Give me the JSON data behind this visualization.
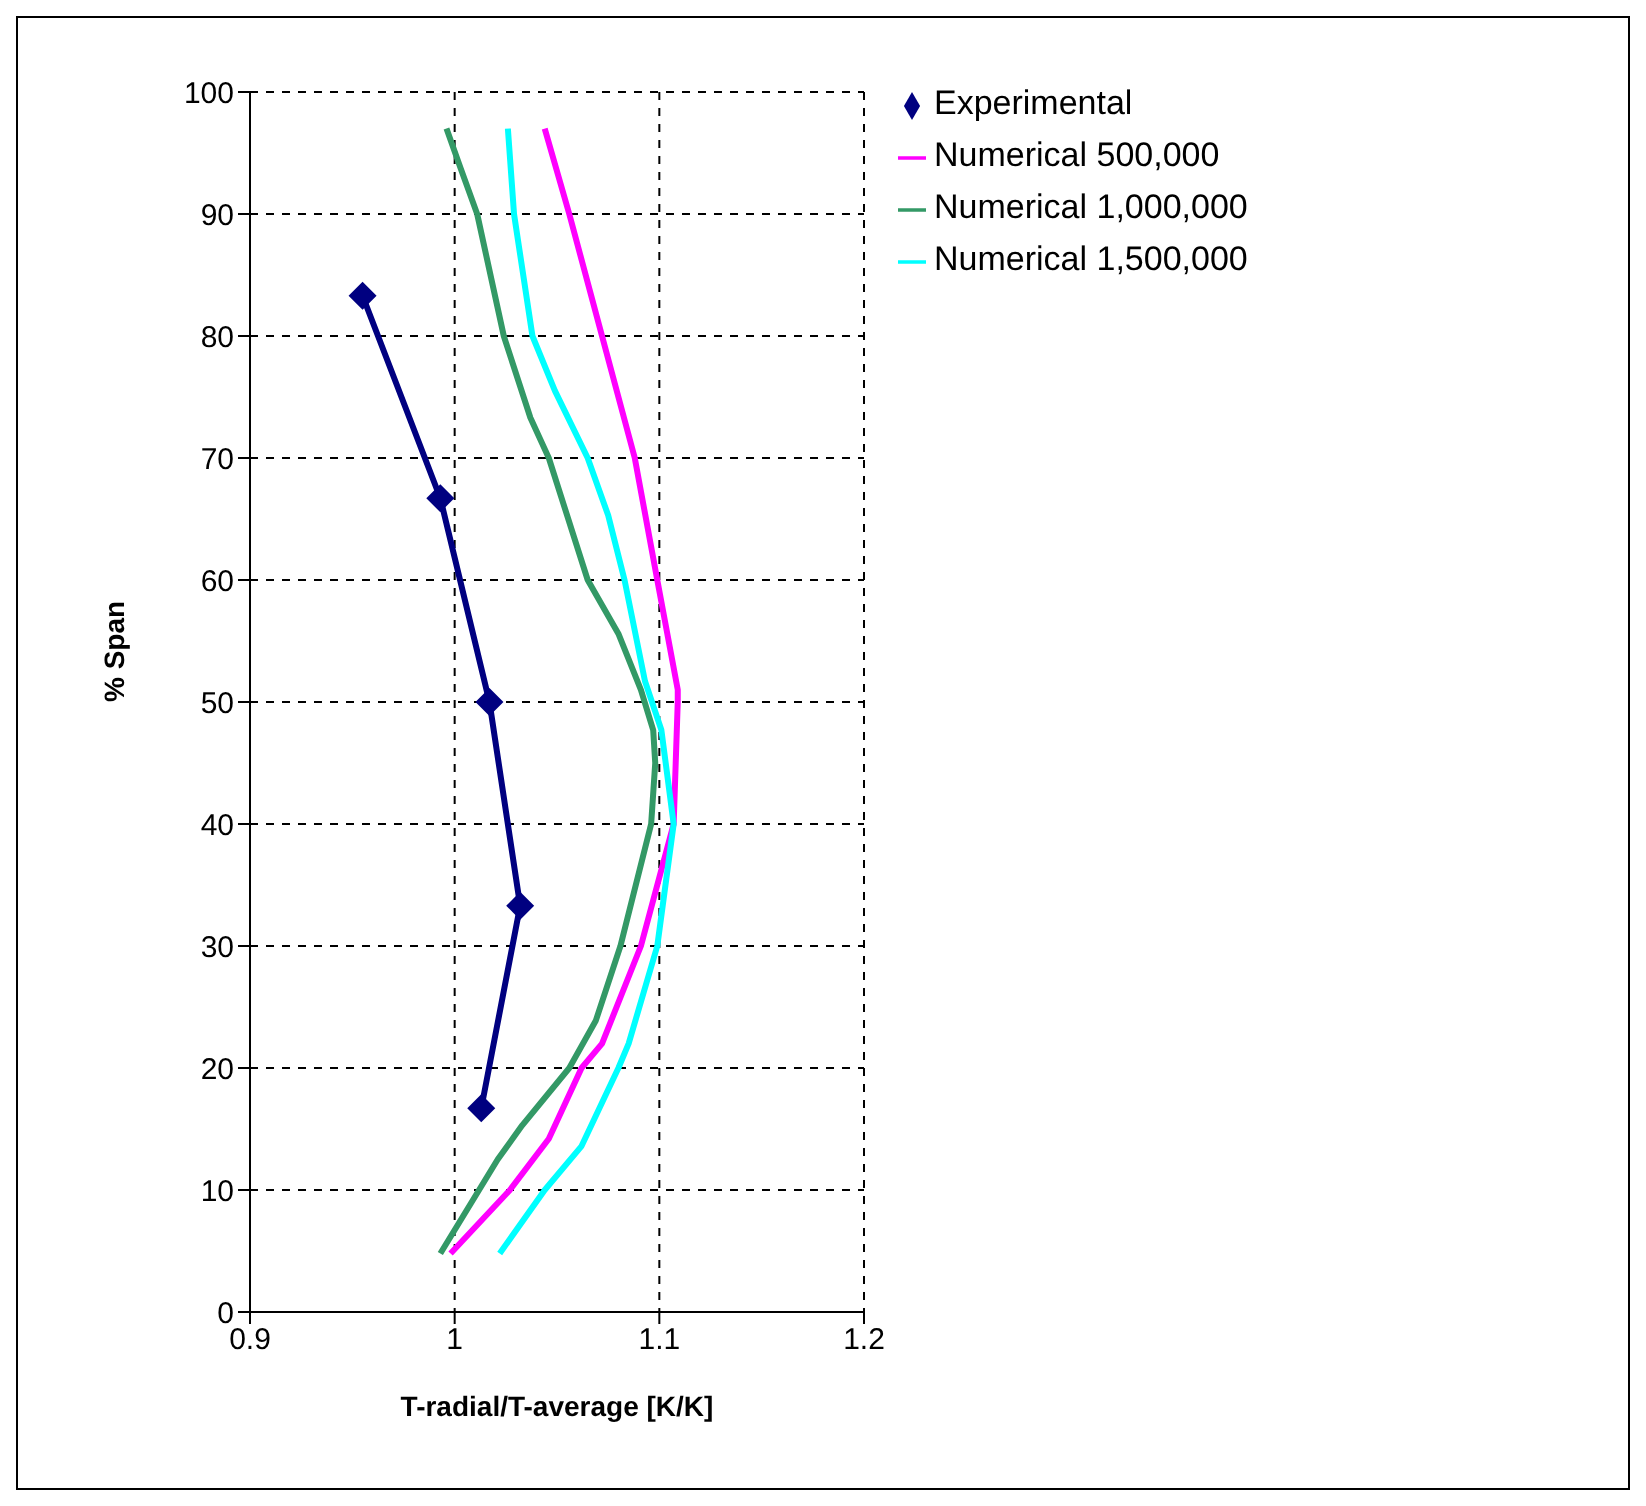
{
  "chart_data": {
    "type": "line",
    "xlabel": "T-radial/T-average [K/K]",
    "ylabel": "% Span",
    "xlim": [
      0.9,
      1.2
    ],
    "xticks": [
      0.9,
      1,
      1.1,
      1.2
    ],
    "ylim": [
      0,
      100
    ],
    "yticks": [
      0,
      10,
      20,
      30,
      40,
      50,
      60,
      70,
      80,
      90,
      100
    ],
    "grid": true,
    "legend": "top right",
    "series": [
      {
        "name": "Experimental",
        "color": "#000080",
        "marker": "diamond",
        "x": [
          0.955,
          0.993,
          1.017,
          1.032,
          1.013
        ],
        "values": [
          83.3,
          66.7,
          50,
          33.3,
          16.7
        ]
      },
      {
        "name": "Numerical 500,000",
        "color": "#ff00ff",
        "marker": "none",
        "x": [
          1.044,
          1.056,
          1.072,
          1.088,
          1.099,
          1.109,
          1.109,
          1.107,
          1.091,
          1.072,
          1.062,
          1.046,
          1.027,
          0.998
        ],
        "values": [
          97,
          90,
          80,
          70,
          60,
          51,
          50,
          40,
          30,
          22,
          20,
          14.2,
          10,
          4.8
        ]
      },
      {
        "name": "Numerical 1,000,000",
        "color": "#339966",
        "marker": "none",
        "x": [
          0.996,
          1.003,
          1.011,
          1.024,
          1.037,
          1.046,
          1.065,
          1.08,
          1.091,
          1.097,
          1.098,
          1.096,
          1.081,
          1.069,
          1.056,
          1.033,
          1.021,
          0.993
        ],
        "values": [
          97,
          93.7,
          90,
          80,
          73.3,
          70,
          60,
          55.6,
          51,
          47.7,
          45,
          40,
          30,
          23.9,
          20,
          15.3,
          12.5,
          4.8
        ]
      },
      {
        "name": "Numerical 1,500,000",
        "color": "#00ffff",
        "marker": "none",
        "x": [
          1.026,
          1.029,
          1.038,
          1.049,
          1.065,
          1.075,
          1.083,
          1.093,
          1.101,
          1.107,
          1.099,
          1.085,
          1.08,
          1.062,
          1.044,
          1.022
        ],
        "values": [
          97,
          90,
          80,
          75.5,
          70,
          65.3,
          60,
          51.7,
          47.7,
          40,
          30,
          22,
          20,
          13.6,
          10,
          4.8
        ]
      }
    ]
  }
}
